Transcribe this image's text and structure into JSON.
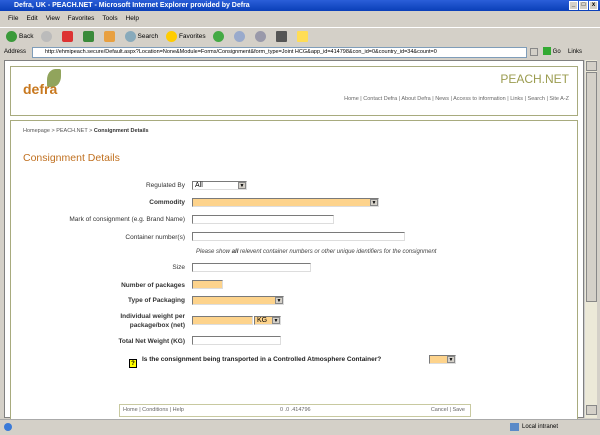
{
  "window": {
    "title": "Defra, UK - PEACH.NET - Microsoft Internet Explorer provided by Defra"
  },
  "menu": [
    "File",
    "Edit",
    "View",
    "Favorites",
    "Tools",
    "Help"
  ],
  "toolbar": {
    "back": "Back",
    "search": "Search",
    "favorites": "Favorites"
  },
  "address": {
    "label": "Address",
    "url": "http://ehmipeach.secure/Default.aspx?Location=None&Module=Forms/Consignment&form_type=Joint HCG&app_id=414798&con_id=0&country_id=34&count=0",
    "go": "Go",
    "links": "Links"
  },
  "header": {
    "logo": "defra",
    "site": "PEACH.NET",
    "nav": "Home | Contact Defra | About Defra | News | Access to information | Links | Search | Site A-Z"
  },
  "breadcrumb": {
    "a": "Homepage",
    "b": "PEACH.NET",
    "c": "Consignment Details",
    "sep": " > "
  },
  "page_title": "Consignment Details",
  "form": {
    "regulated_by": {
      "label": "Regulated By",
      "value": "All"
    },
    "commodity": {
      "label": "Commodity",
      "value": ""
    },
    "mark": {
      "label": "Mark of consignment (e.g. Brand Name)",
      "value": ""
    },
    "container": {
      "label": "Container number(s)",
      "value": "",
      "note_pre": "Please show ",
      "note_bold": "all",
      "note_post": " relevent container numbers or other unique identifiers for the consignment"
    },
    "size": {
      "label": "Size",
      "value": ""
    },
    "packages": {
      "label": "Number of packages",
      "value": ""
    },
    "packaging": {
      "label": "Type of Packaging",
      "value": ""
    },
    "weight": {
      "label1": "Individual weight per",
      "label2": "package/box (net)",
      "value": "",
      "unit": "KG"
    },
    "total": {
      "label": "Total Net Weight (KG)",
      "value": ""
    },
    "ca": {
      "help": "?",
      "question": "Is the consignment being transported in a Controlled Atmosphere Container?",
      "value": ""
    }
  },
  "footer": {
    "home": "Home",
    "conditions": "Conditions",
    "help": "Help",
    "version": "0 .0 .414796",
    "cancel": "Cancel",
    "save": "Save"
  },
  "status": {
    "zone": "Local intranet"
  }
}
